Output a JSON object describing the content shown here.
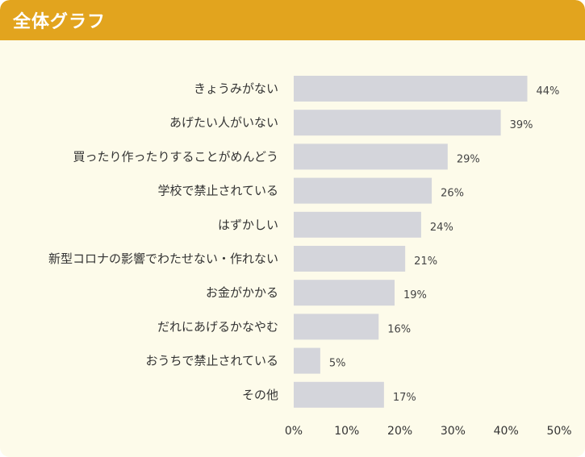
{
  "header": {
    "title": "全体グラフ"
  },
  "colors": {
    "header_bg": "#e2a41e",
    "panel_bg": "#fdfbea",
    "bar": "#d4d5db"
  },
  "chart_data": {
    "type": "bar",
    "orientation": "horizontal",
    "title": "全体グラフ",
    "categories": [
      "きょうみがない",
      "あげたい人がいない",
      "買ったり作ったりすることがめんどう",
      "学校で禁止されている",
      "はずかしい",
      "新型コロナの影響でわたせない・作れない",
      "お金がかかる",
      "だれにあげるかなやむ",
      "おうちで禁止されている",
      "その他"
    ],
    "values": [
      44,
      39,
      29,
      26,
      24,
      21,
      19,
      16,
      5,
      17
    ],
    "value_suffix": "%",
    "xlim": [
      0,
      50
    ],
    "xticks": [
      0,
      10,
      20,
      30,
      40,
      50
    ],
    "tick_labels": [
      "0%",
      "10%",
      "20%",
      "30%",
      "40%",
      "50%"
    ],
    "grid": false
  }
}
